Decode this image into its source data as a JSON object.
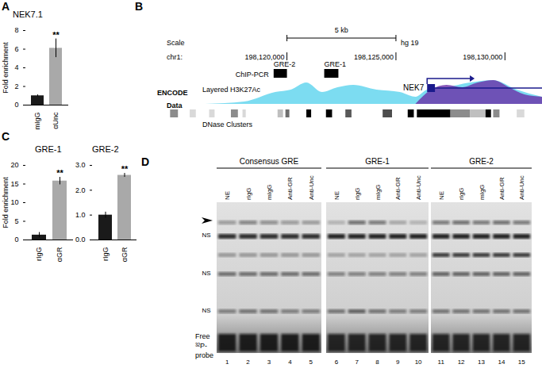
{
  "panel_labels": [
    "A",
    "B",
    "C",
    "D"
  ],
  "chart_data": [
    {
      "type": "bar",
      "title": "NEK7.1",
      "categories": [
        "mIgG",
        "αUnc"
      ],
      "values": [
        1.0,
        6.1
      ],
      "errors": [
        0.1,
        1.0
      ],
      "colors": [
        "#1a1a1a",
        "#a9a9a9"
      ],
      "y_label": "Fold enrichment",
      "ylim": [
        0,
        8
      ],
      "yticks": [
        0,
        2,
        4,
        6,
        8
      ],
      "annotations": [
        null,
        "**"
      ]
    },
    {
      "type": "bar",
      "title": "GRE-1",
      "categories": [
        "rIgG",
        "αGR"
      ],
      "values": [
        1.3,
        15.8
      ],
      "errors": [
        0.7,
        1.0
      ],
      "colors": [
        "#1a1a1a",
        "#a9a9a9"
      ],
      "y_label": "Fold enrichment",
      "ylim": [
        0,
        20
      ],
      "yticks": [
        0,
        5,
        10,
        15,
        20
      ],
      "annotations": [
        null,
        "**"
      ]
    },
    {
      "type": "bar",
      "title": "GRE-2",
      "categories": [
        "rIgG",
        "αGR"
      ],
      "values": [
        1.0,
        2.6
      ],
      "errors": [
        0.12,
        0.08
      ],
      "colors": [
        "#1a1a1a",
        "#a9a9a9"
      ],
      "ylim": [
        0,
        3
      ],
      "yticks": [
        0,
        1,
        2,
        3
      ],
      "annotations": [
        null,
        "**"
      ]
    }
  ],
  "diagram": {
    "scale_label": "Scale",
    "scale_bar": {
      "label": "5 kb",
      "start": 198120000,
      "end": 198125000
    },
    "assembly": "hg 19",
    "chrom_label": "chr1:",
    "view": [
      198114300,
      198131700
    ],
    "ticks": [
      {
        "value": 198120000,
        "label": "198,120,000"
      },
      {
        "value": 198125000,
        "label": "198,125,000"
      },
      {
        "value": 198130000,
        "label": "198,130,000"
      }
    ],
    "chip_pcr": {
      "label": "ChIP-PCR",
      "regions": [
        {
          "label": "GRE-2",
          "start": 198119390,
          "end": 198120000
        },
        {
          "label": "GRE-1",
          "start": 198121710,
          "end": 198122360
        }
      ]
    },
    "gene": {
      "name": "NEK7",
      "tss": 198126430,
      "exon_end": 198126790,
      "arrow_end": 198128390,
      "end": 198131700
    },
    "source_label": [
      "ENCODE",
      "Data"
    ],
    "h3k27ac": {
      "label": "Layered H3K27Ac",
      "layers": [
        {
          "color": "#5bd3ee",
          "x": [
            198116250,
            198118040,
            198119460,
            198120180,
            198120890,
            198121610,
            198122320,
            198123040,
            198124110,
            198125180,
            198125890,
            198126430,
            198127320,
            198128390,
            198129460,
            198130540,
            198131700
          ],
          "values": [
            0,
            0.1,
            0.5,
            0.6,
            0.9,
            0.5,
            0.7,
            0.8,
            0.6,
            0.5,
            0.3,
            0.6,
            0.7,
            0.9,
            1.0,
            0.6,
            0.3
          ]
        },
        {
          "color": "#6a2fa8",
          "x": [
            198125890,
            198126610,
            198127320,
            198128040,
            198128750,
            198129460,
            198130180,
            198130890,
            198131700
          ],
          "values": [
            0,
            0.6,
            0.8,
            0.7,
            0.9,
            1.0,
            0.7,
            0.4,
            0.3
          ]
        }
      ]
    },
    "dnase": {
      "label": "DNase Clusters",
      "blocks": [
        {
          "start": 198114640,
          "end": 198115000,
          "color": "#8c8c8c"
        },
        {
          "start": 198115540,
          "end": 198115820,
          "color": "#d9d9d9"
        },
        {
          "start": 198116430,
          "end": 198116680,
          "color": "#d9d9d9"
        },
        {
          "start": 198117430,
          "end": 198117750,
          "color": "#8c8c8c"
        },
        {
          "start": 198117960,
          "end": 198118110,
          "color": "#d9d9d9"
        },
        {
          "start": 198119570,
          "end": 198119820,
          "color": "#bfbfbf"
        },
        {
          "start": 198119930,
          "end": 198120110,
          "color": "#6e6e6e"
        },
        {
          "start": 198120890,
          "end": 198121110,
          "color": "#000000"
        },
        {
          "start": 198121790,
          "end": 198122070,
          "color": "#000000"
        },
        {
          "start": 198122680,
          "end": 198122960,
          "color": "#595959"
        },
        {
          "start": 198124390,
          "end": 198124820,
          "color": "#4d4d4d"
        },
        {
          "start": 198125540,
          "end": 198125820,
          "color": "#000000"
        },
        {
          "start": 198125960,
          "end": 198127500,
          "color": "#000000"
        },
        {
          "start": 198127500,
          "end": 198128390,
          "color": "#8c8c8c"
        },
        {
          "start": 198128390,
          "end": 198129110,
          "color": "#bfbfbf"
        },
        {
          "start": 198129110,
          "end": 198129360,
          "color": "#000000"
        },
        {
          "start": 198129460,
          "end": 198129750,
          "color": "#8c8c8c"
        },
        {
          "start": 198130540,
          "end": 198130890,
          "color": "#d9d9d9"
        }
      ]
    }
  },
  "gel": {
    "groups": [
      {
        "title": "Consensus GRE",
        "lanes": [
          "NE",
          "rIgG",
          "mIgG",
          "Anti-GR",
          "Anti-Unc"
        ],
        "numbers": [
          1,
          2,
          3,
          4,
          5
        ]
      },
      {
        "title": "GRE-1",
        "lanes": [
          "NE",
          "rIgG",
          "mIgG",
          "Anti-GR",
          "Anti-Unc"
        ],
        "numbers": [
          6,
          7,
          8,
          9,
          10
        ]
      },
      {
        "title": "GRE-2",
        "lanes": [
          "NE",
          "rIgG",
          "mIgG",
          "Anti-GR",
          "Anti-Unc"
        ],
        "numbers": [
          11,
          12,
          13,
          14,
          15
        ]
      }
    ],
    "band_labels": [
      "NS",
      "NS",
      "NS"
    ],
    "free_probe": [
      "Free",
      "³²P-",
      "probe"
    ]
  }
}
